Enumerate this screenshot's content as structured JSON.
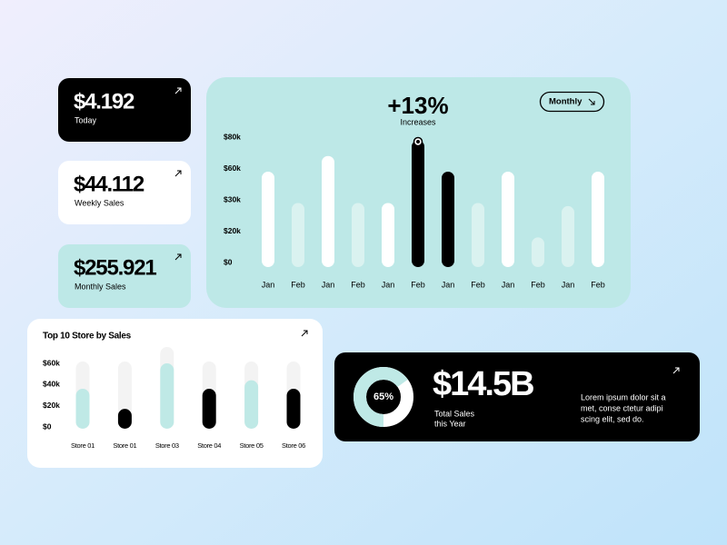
{
  "cards": [
    {
      "value": "$4.192",
      "label": "Today"
    },
    {
      "value": "$44.112",
      "label": "Weekly Sales"
    },
    {
      "value": "$255.921",
      "label": "Monthly Sales"
    }
  ],
  "controls": {
    "period": "Monthly"
  },
  "chart_data": [
    {
      "type": "bar",
      "title": "+13%",
      "subtitle": "Increases",
      "categories": [
        "Jan",
        "Feb",
        "Jan",
        "Feb",
        "Jan",
        "Feb",
        "Jan",
        "Feb",
        "Jan",
        "Feb",
        "Jan",
        "Feb"
      ],
      "values": [
        57000,
        29000,
        68000,
        29000,
        29000,
        78000,
        57000,
        29000,
        57000,
        16000,
        28000,
        57000
      ],
      "colors": [
        "#ffffff",
        "#daf2f0",
        "#ffffff",
        "#daf2f0",
        "#ffffff",
        "#000000",
        "#000000",
        "#daf2f0",
        "#ffffff",
        "#daf2f0",
        "#daf2f0",
        "#ffffff"
      ],
      "ylim": [
        0,
        80000
      ],
      "yticks": [
        {
          "value": 0,
          "label": "$0"
        },
        {
          "value": 20000,
          "label": "$20k"
        },
        {
          "value": 30000,
          "label": "$30k"
        },
        {
          "value": 60000,
          "label": "$60k"
        },
        {
          "value": 80000,
          "label": "$80k"
        }
      ]
    },
    {
      "type": "bar",
      "title": "Top 10 Store by Sales",
      "categories": [
        "Store 01",
        "Store 01",
        "Store 03",
        "Store 04",
        "Store 05",
        "Store 06"
      ],
      "values": [
        36000,
        17000,
        60000,
        36000,
        44000,
        36000
      ],
      "colors": [
        "#bfe9e6",
        "#000000",
        "#bfe9e6",
        "#000000",
        "#bfe9e6",
        "#000000"
      ],
      "ylim": [
        0,
        60000
      ],
      "yticks": [
        {
          "value": 0,
          "label": "$0"
        },
        {
          "value": 20000,
          "label": "$20k"
        },
        {
          "value": 40000,
          "label": "$40k"
        },
        {
          "value": 60000,
          "label": "$60k"
        }
      ]
    },
    {
      "type": "pie",
      "values": [
        65
      ],
      "value_labels": [
        "65%"
      ],
      "color": "#bfe9e6"
    }
  ],
  "total": {
    "amount": "$14.5B",
    "label_lines": [
      "Total Sales",
      "this Year"
    ],
    "description_lines": [
      "Lorem ipsum dolor sit a",
      "met, conse ctetur adipi",
      "scing elit, sed do."
    ]
  }
}
